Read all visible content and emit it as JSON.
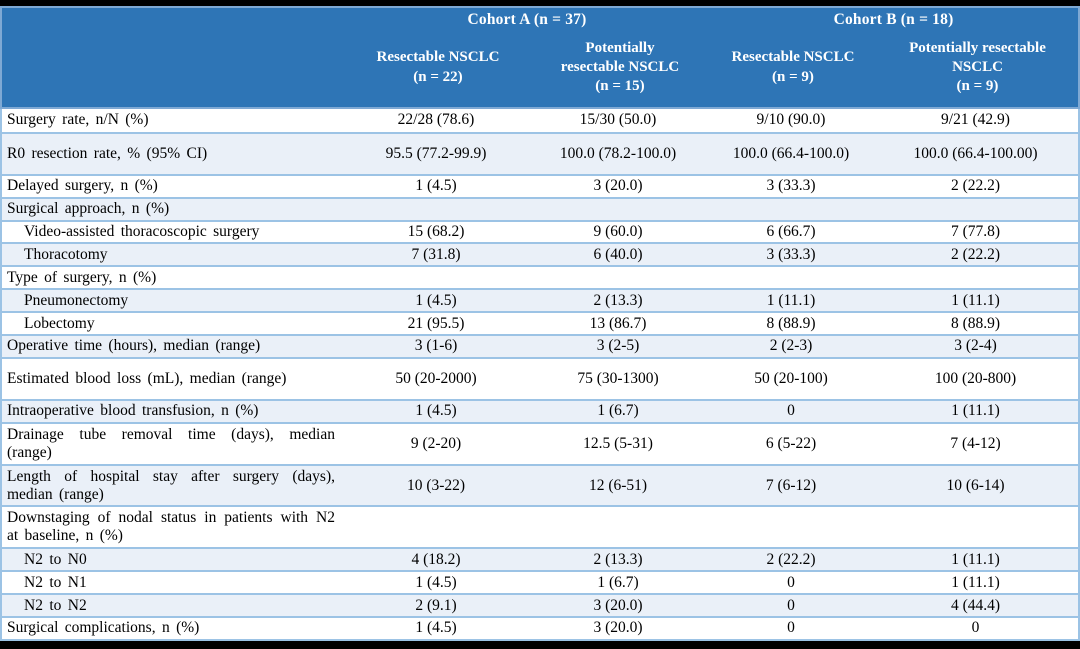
{
  "colors": {
    "header_background": "#2E75B6",
    "header_text": "#FFFFFF",
    "header_border": "#7FA9D4",
    "row_separator": "#9CC3E5",
    "shaded_row_background": "#EAF0F8",
    "body_text": "#000000",
    "frame_bars": "#000000"
  },
  "table": {
    "header": {
      "groups": [
        {
          "label": "Cohort A (n = 37)"
        },
        {
          "label": "Cohort B (n = 18)"
        }
      ],
      "columns": [
        {
          "label": "Resectable NSCLC\n(n = 22)"
        },
        {
          "label": "Potentially\nresectable NSCLC\n(n = 15)"
        },
        {
          "label": "Resectable NSCLC\n(n = 9)"
        },
        {
          "label": "Potentially resectable\nNSCLC\n(n = 9)"
        }
      ]
    },
    "rows": [
      {
        "label": "Surgery rate, n/N (%)",
        "indent": false,
        "tall": false,
        "values": [
          "22/28 (78.6)",
          "15/30 (50.0)",
          "9/10 (90.0)",
          "9/21 (42.9)"
        ]
      },
      {
        "label": "R0 resection rate, % (95% CI)",
        "indent": false,
        "tall": true,
        "values": [
          "95.5 (77.2-99.9)",
          "100.0 (78.2-100.0)",
          "100.0 (66.4-100.0)",
          "100.0 (66.4-100.00)"
        ]
      },
      {
        "label": "Delayed surgery, n (%)",
        "indent": false,
        "tall": false,
        "values": [
          "1 (4.5)",
          "3 (20.0)",
          "3 (33.3)",
          "2 (22.2)"
        ]
      },
      {
        "label": "Surgical approach, n (%)",
        "indent": false,
        "tall": false,
        "values": [
          "",
          "",
          "",
          ""
        ]
      },
      {
        "label": "Video-assisted thoracoscopic surgery",
        "indent": true,
        "tall": false,
        "values": [
          "15 (68.2)",
          "9 (60.0)",
          "6 (66.7)",
          "7 (77.8)"
        ]
      },
      {
        "label": "Thoracotomy",
        "indent": true,
        "tall": false,
        "values": [
          "7 (31.8)",
          "6 (40.0)",
          "3 (33.3)",
          "2 (22.2)"
        ]
      },
      {
        "label": "Type of surgery, n (%)",
        "indent": false,
        "tall": false,
        "values": [
          "",
          "",
          "",
          ""
        ]
      },
      {
        "label": "Pneumonectomy",
        "indent": true,
        "tall": false,
        "values": [
          "1 (4.5)",
          "2 (13.3)",
          "1 (11.1)",
          "1 (11.1)"
        ]
      },
      {
        "label": "Lobectomy",
        "indent": true,
        "tall": false,
        "values": [
          "21 (95.5)",
          "13 (86.7)",
          "8 (88.9)",
          "8 (88.9)"
        ]
      },
      {
        "label": "Operative time (hours), median (range)",
        "indent": false,
        "tall": false,
        "values": [
          "3 (1-6)",
          "3 (2-5)",
          "2 (2-3)",
          "3 (2-4)"
        ]
      },
      {
        "label": "Estimated blood loss (mL), median (range)",
        "indent": false,
        "tall": true,
        "values": [
          "50 (20-2000)",
          "75 (30-1300)",
          "50 (20-100)",
          "100 (20-800)"
        ]
      },
      {
        "label": "Intraoperative blood transfusion, n (%)",
        "indent": false,
        "tall": false,
        "values": [
          "1 (4.5)",
          "1 (6.7)",
          "0",
          "1 (11.1)"
        ]
      },
      {
        "label": "Drainage tube removal time (days), median (range)",
        "indent": false,
        "tall": true,
        "values": [
          "9 (2-20)",
          "12.5 (5-31)",
          "6 (5-22)",
          "7 (4-12)"
        ]
      },
      {
        "label": "Length of hospital stay after surgery (days), median (range)",
        "indent": false,
        "tall": true,
        "values": [
          "10 (3-22)",
          "12 (6-51)",
          "7 (6-12)",
          "10 (6-14)"
        ]
      },
      {
        "label": "Downstaging of nodal status in patients with N2 at baseline, n (%)",
        "indent": false,
        "tall": true,
        "values": [
          "",
          "",
          "",
          ""
        ]
      },
      {
        "label": "N2 to N0",
        "indent": true,
        "tall": false,
        "values": [
          "4 (18.2)",
          "2 (13.3)",
          "2 (22.2)",
          "1 (11.1)"
        ]
      },
      {
        "label": "N2 to N1",
        "indent": true,
        "tall": false,
        "values": [
          "1 (4.5)",
          "1 (6.7)",
          "0",
          "1 (11.1)"
        ]
      },
      {
        "label": "N2 to N2",
        "indent": true,
        "tall": false,
        "values": [
          "2 (9.1)",
          "3 (20.0)",
          "0",
          "4 (44.4)"
        ]
      },
      {
        "label": "Surgical complications, n (%)",
        "indent": false,
        "tall": false,
        "values": [
          "1 (4.5)",
          "3 (20.0)",
          "0",
          "0"
        ]
      }
    ]
  }
}
